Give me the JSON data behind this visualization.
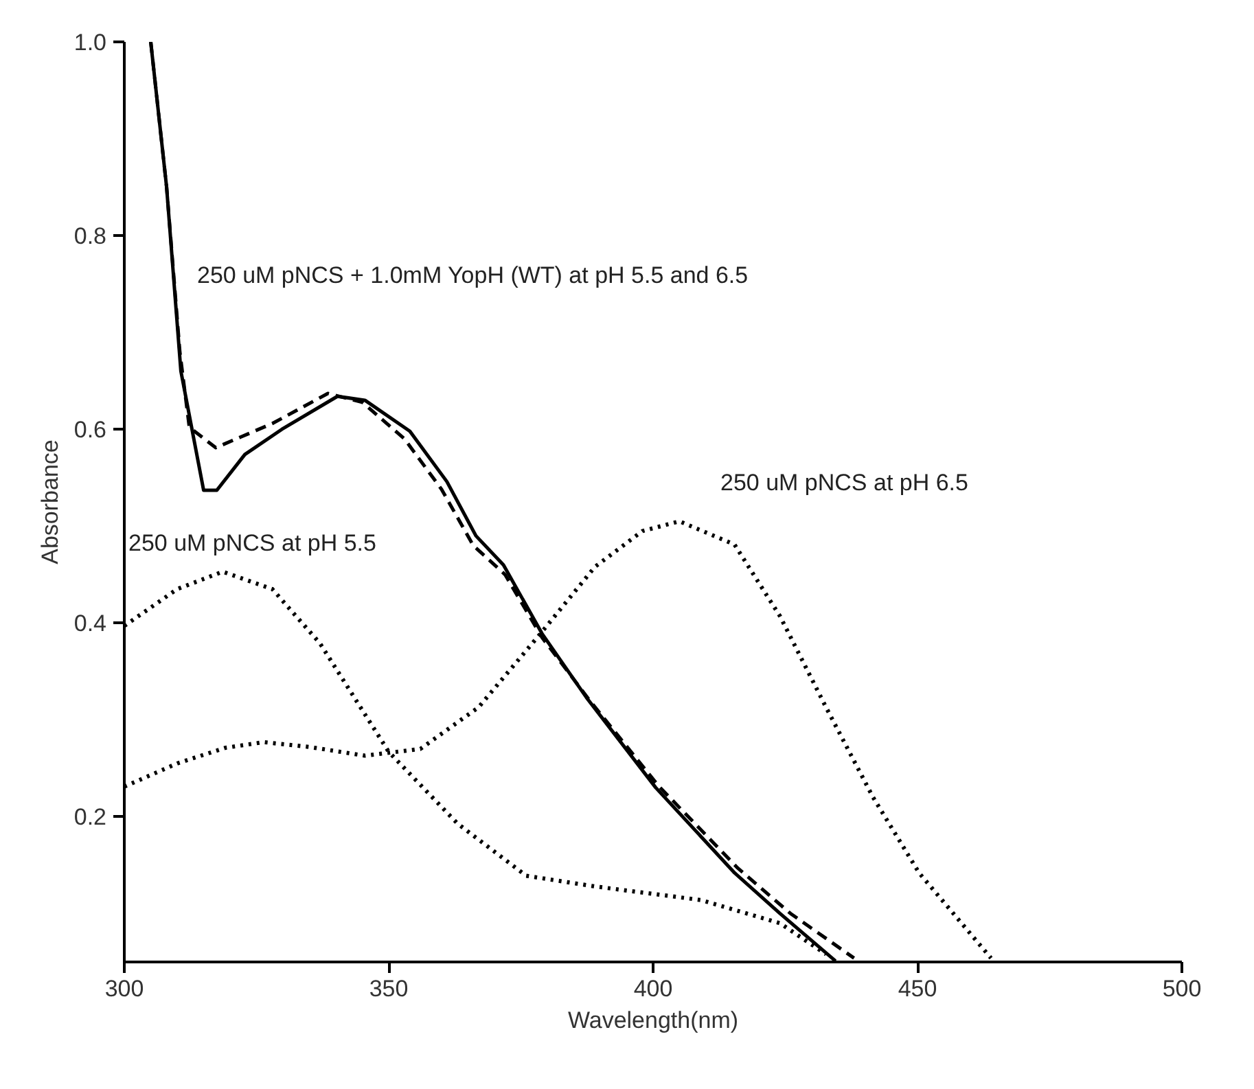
{
  "chart_data": {
    "type": "line",
    "xlabel": "Wavelength(nm)",
    "ylabel": "Absorbance",
    "xlim": [
      300,
      500
    ],
    "ylim": [
      0.05,
      1.0
    ],
    "xticks": [
      300,
      350,
      400,
      450,
      500
    ],
    "yticks": [
      {
        "value": 0.2,
        "label": "0.2"
      },
      {
        "value": 0.4,
        "label": "0.4"
      },
      {
        "value": 0.6,
        "label": "0.6"
      },
      {
        "value": 0.8,
        "label": "0.8"
      },
      {
        "value": 1.0,
        "label": "1.0"
      }
    ],
    "grid": false,
    "marker": "none",
    "series": [
      {
        "color": "#000000",
        "line_style": "solid",
        "x": [
          305,
          308,
          310.7,
          315,
          317.5,
          322.8,
          329.8,
          340.3,
          345.5,
          354,
          361,
          366.5,
          371.7,
          379,
          387.4,
          400.5,
          415.4,
          424,
          434.5
        ],
        "values": [
          1.0,
          0.85,
          0.66,
          0.537,
          0.537,
          0.574,
          0.6,
          0.634,
          0.63,
          0.598,
          0.546,
          0.49,
          0.46,
          0.389,
          0.323,
          0.23,
          0.142,
          0.1,
          0.051
        ]
      },
      {
        "color": "#000000",
        "line_style": "dashed",
        "x": [
          305,
          308,
          310.5,
          312.3,
          317.3,
          322,
          328,
          338.5,
          345,
          353,
          360,
          366,
          372,
          379,
          388,
          401,
          416,
          426,
          438
        ],
        "values": [
          1.0,
          0.85,
          0.68,
          0.602,
          0.581,
          0.592,
          0.606,
          0.637,
          0.628,
          0.59,
          0.538,
          0.48,
          0.45,
          0.385,
          0.32,
          0.232,
          0.147,
          0.1,
          0.054
        ]
      },
      {
        "color": "#000000",
        "line_style": "dotted",
        "x": [
          300,
          310,
          318.6,
          328,
          337,
          350,
          363,
          376,
          389,
          409,
          424,
          432.7
        ],
        "values": [
          0.397,
          0.435,
          0.453,
          0.435,
          0.379,
          0.267,
          0.193,
          0.139,
          0.128,
          0.114,
          0.09,
          0.058
        ]
      },
      {
        "color": "#000000",
        "line_style": "dotted",
        "x": [
          300,
          310,
          319,
          326.4,
          335,
          345.5,
          356,
          367,
          378.7,
          389,
          398,
          405,
          415.4,
          424,
          432.7,
          441.6,
          450.3,
          463.9
        ],
        "values": [
          0.231,
          0.255,
          0.271,
          0.277,
          0.272,
          0.263,
          0.27,
          0.313,
          0.389,
          0.458,
          0.495,
          0.505,
          0.481,
          0.407,
          0.313,
          0.22,
          0.142,
          0.054
        ]
      }
    ],
    "annotations": [
      "250 uM pNCS + 1.0mM YopH (WT) at pH 5.5 and 6.5",
      "250 uM pNCS at pH 5.5",
      "250 uM pNCS at pH 6.5"
    ]
  }
}
